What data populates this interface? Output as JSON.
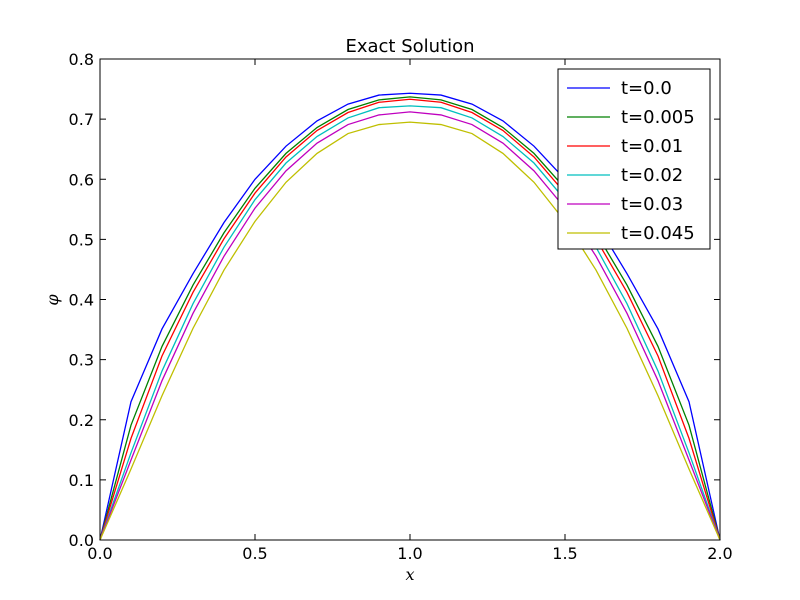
{
  "chart_data": {
    "type": "line",
    "title": "Exact Solution",
    "xlabel": "x",
    "ylabel": "φ",
    "xlim": [
      0.0,
      2.0
    ],
    "ylim": [
      0.0,
      0.8
    ],
    "x_ticks": [
      0.0,
      0.5,
      1.0,
      1.5,
      2.0
    ],
    "x_tick_labels": [
      "0.0",
      "0.5",
      "1.0",
      "1.5",
      "2.0"
    ],
    "y_ticks": [
      0.0,
      0.1,
      0.2,
      0.3,
      0.4,
      0.5,
      0.6,
      0.7,
      0.8
    ],
    "y_tick_labels": [
      "0.0",
      "0.1",
      "0.2",
      "0.3",
      "0.4",
      "0.5",
      "0.6",
      "0.7",
      "0.8"
    ],
    "grid": false,
    "legend_position": "top-right",
    "x": [
      0.0,
      0.1,
      0.2,
      0.3,
      0.4,
      0.5,
      0.6,
      0.7,
      0.8,
      0.9,
      1.0,
      1.1,
      1.2,
      1.3,
      1.4,
      1.5,
      1.6,
      1.7,
      1.8,
      1.9,
      2.0
    ],
    "series": [
      {
        "name": "t=0.0",
        "color": "#0000ff",
        "values": [
          0.0,
          0.23,
          0.351,
          0.443,
          0.528,
          0.6,
          0.655,
          0.697,
          0.725,
          0.74,
          0.743,
          0.74,
          0.725,
          0.697,
          0.655,
          0.6,
          0.528,
          0.443,
          0.351,
          0.23,
          0.0
        ]
      },
      {
        "name": "t=0.005",
        "color": "#008000",
        "values": [
          0.0,
          0.191,
          0.322,
          0.424,
          0.511,
          0.585,
          0.643,
          0.686,
          0.716,
          0.732,
          0.737,
          0.732,
          0.716,
          0.686,
          0.643,
          0.585,
          0.511,
          0.424,
          0.322,
          0.191,
          0.0
        ]
      },
      {
        "name": "t=0.01",
        "color": "#ff0000",
        "values": [
          0.0,
          0.169,
          0.306,
          0.412,
          0.501,
          0.577,
          0.637,
          0.681,
          0.711,
          0.728,
          0.733,
          0.728,
          0.711,
          0.681,
          0.637,
          0.577,
          0.501,
          0.412,
          0.306,
          0.169,
          0.0
        ]
      },
      {
        "name": "t=0.02",
        "color": "#00bfbf",
        "values": [
          0.0,
          0.145,
          0.281,
          0.393,
          0.487,
          0.566,
          0.627,
          0.671,
          0.702,
          0.719,
          0.722,
          0.719,
          0.702,
          0.671,
          0.627,
          0.566,
          0.487,
          0.393,
          0.281,
          0.145,
          0.0
        ]
      },
      {
        "name": "t=0.03",
        "color": "#bf00bf",
        "values": [
          0.0,
          0.133,
          0.265,
          0.377,
          0.472,
          0.552,
          0.614,
          0.66,
          0.691,
          0.707,
          0.712,
          0.707,
          0.691,
          0.66,
          0.614,
          0.552,
          0.472,
          0.377,
          0.265,
          0.133,
          0.0
        ]
      },
      {
        "name": "t=0.045",
        "color": "#bfbf00",
        "values": [
          0.0,
          0.118,
          0.24,
          0.352,
          0.449,
          0.53,
          0.595,
          0.643,
          0.676,
          0.691,
          0.695,
          0.691,
          0.676,
          0.643,
          0.595,
          0.53,
          0.449,
          0.352,
          0.24,
          0.118,
          0.0
        ]
      }
    ]
  }
}
